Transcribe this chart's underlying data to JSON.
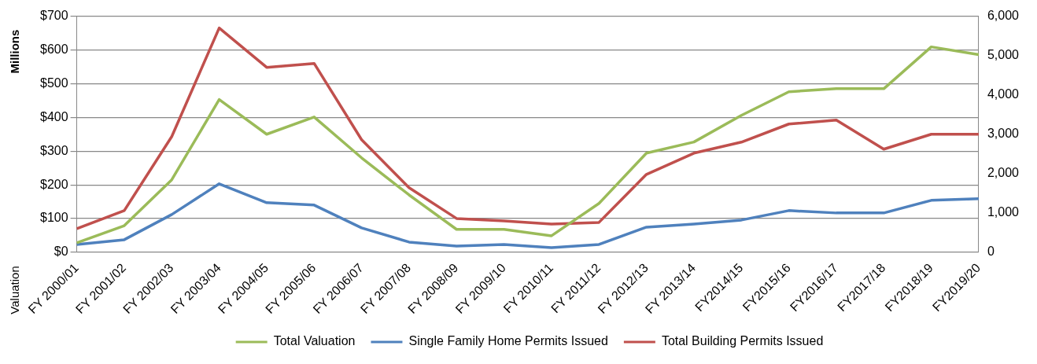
{
  "chart_data": {
    "type": "line",
    "ylabel": "Valuation",
    "annotations": [
      "Millions"
    ],
    "categories": [
      "FY 2000/01",
      "FY 2001/02",
      "FY 2002/03",
      "FY 2003/04",
      "FY 2004/05",
      "FY 2005/06",
      "FY 2006/07",
      "FY 2007/08",
      "FY 2008/09",
      "FY 2009/10",
      "FY 2010/11",
      "FY 2011/12",
      "FY 2012/13",
      "FY 2013/14",
      "FY2014/15",
      "FY2015/16",
      "FY2016/17",
      "FY2017/18",
      "FY2018/19",
      "FY2019/20"
    ],
    "series": [
      {
        "name": "Total Valuation",
        "color": "#9bbb59",
        "values": [
          28,
          79,
          215,
          453,
          350,
          401,
          280,
          170,
          68,
          68,
          49,
          145,
          294,
          327,
          406,
          476,
          485,
          485,
          609,
          586
        ]
      },
      {
        "name": "Single Family Home Permits Issued",
        "color": "#4f81bd",
        "axis": "y2",
        "values": [
          200,
          320,
          960,
          1740,
          1260,
          1200,
          620,
          260,
          160,
          200,
          120,
          200,
          640,
          720,
          820,
          1060,
          1000,
          1000,
          1320,
          1360
        ]
      },
      {
        "name": "Total Building Permits Issued",
        "color": "#c0504d",
        "axis": "y2",
        "values": [
          600,
          1060,
          2940,
          5700,
          4700,
          4800,
          2860,
          1640,
          860,
          800,
          720,
          760,
          1980,
          2520,
          2800,
          3260,
          3360,
          2620,
          3000,
          3000
        ]
      }
    ],
    "ylim": [
      0,
      700
    ],
    "yticks": [
      {
        "value": 0,
        "label": "$0"
      },
      {
        "value": 100,
        "label": "$100"
      },
      {
        "value": 200,
        "label": "$200"
      },
      {
        "value": 300,
        "label": "$300"
      },
      {
        "value": 400,
        "label": "$400"
      },
      {
        "value": 500,
        "label": "$500"
      },
      {
        "value": 600,
        "label": "$600"
      },
      {
        "value": 700,
        "label": "$700"
      }
    ],
    "y2lim": [
      0,
      6000
    ],
    "y2ticks": [
      0,
      {
        "value": 1000,
        "label": "1,000"
      },
      {
        "value": 2000,
        "label": "2,000"
      },
      {
        "value": 3000,
        "label": "3,000"
      },
      {
        "value": 4000,
        "label": "4,000"
      },
      {
        "value": 5000,
        "label": "5,000"
      },
      {
        "value": 6000,
        "label": "6,000"
      }
    ],
    "grid": "y",
    "legend": "bottom",
    "marker": "none",
    "line_style": "solid"
  }
}
